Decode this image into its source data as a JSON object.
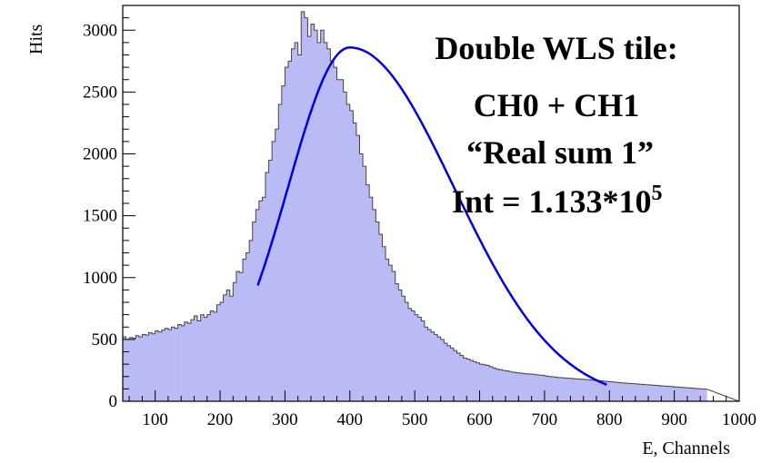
{
  "chart_data": {
    "type": "histogram",
    "xlabel": "E, Channels",
    "ylabel": "Hits",
    "xlim": [
      50,
      1000
    ],
    "ylim": [
      0,
      3200
    ],
    "x_ticks": [
      "100",
      "200",
      "300",
      "400",
      "500",
      "600",
      "700",
      "800",
      "900",
      "1000"
    ],
    "y_ticks": [
      "0",
      "500",
      "1000",
      "1500",
      "2000",
      "2500",
      "3000"
    ],
    "bin_width": 5,
    "bin_start": 50,
    "fill_color": "#babaf5",
    "line_color": "#444444",
    "fit_color": "#0000dd",
    "annotations": {
      "line1": "Double WLS tile:",
      "line2": "CH0 + CH1",
      "line3": "“Real sum 1”",
      "line4_main": "Int = 1.133*10",
      "line4_sup": "5"
    },
    "fit": {
      "type": "gaussian-like",
      "x_range": [
        258,
        797
      ],
      "peak_x": 400,
      "peak_y": 2860,
      "sigma_left": 95,
      "sigma_right": 160
    },
    "values": [
      520,
      500,
      515,
      510,
      530,
      520,
      540,
      535,
      555,
      545,
      570,
      560,
      575,
      590,
      580,
      600,
      590,
      620,
      610,
      640,
      630,
      660,
      690,
      650,
      700,
      680,
      700,
      730,
      720,
      780,
      800,
      860,
      900,
      850,
      960,
      1050,
      1040,
      1150,
      1200,
      1300,
      1450,
      1550,
      1620,
      1650,
      1850,
      1950,
      2100,
      2200,
      2400,
      2550,
      2700,
      2750,
      2850,
      2900,
      2800,
      3150,
      3100,
      2950,
      3050,
      3000,
      2900,
      3000,
      2900,
      2850,
      2750,
      2700,
      2600,
      2600,
      2500,
      2400,
      2350,
      2250,
      2150,
      2000,
      1900,
      1750,
      1650,
      1550,
      1450,
      1350,
      1250,
      1150,
      1100,
      1050,
      950,
      900,
      850,
      800,
      750,
      730,
      700,
      680,
      650,
      600,
      580,
      560,
      540,
      520,
      500,
      470,
      450,
      430,
      410,
      390,
      370,
      350,
      340,
      330,
      320,
      310,
      300,
      295,
      290,
      280,
      270,
      260,
      255,
      250,
      245,
      240,
      235,
      230,
      228,
      225,
      222,
      220,
      218,
      215,
      212,
      210,
      205,
      200,
      198,
      195,
      192,
      190,
      188,
      186,
      184,
      182,
      180,
      178,
      176,
      174,
      172,
      170,
      168,
      165,
      162,
      160,
      158,
      155,
      152,
      150,
      148,
      146,
      144,
      142,
      140,
      138,
      136,
      134,
      132,
      130,
      128,
      126,
      124,
      122,
      120,
      118,
      116,
      114,
      112,
      110,
      108,
      106,
      104,
      102,
      100,
      98
    ]
  }
}
